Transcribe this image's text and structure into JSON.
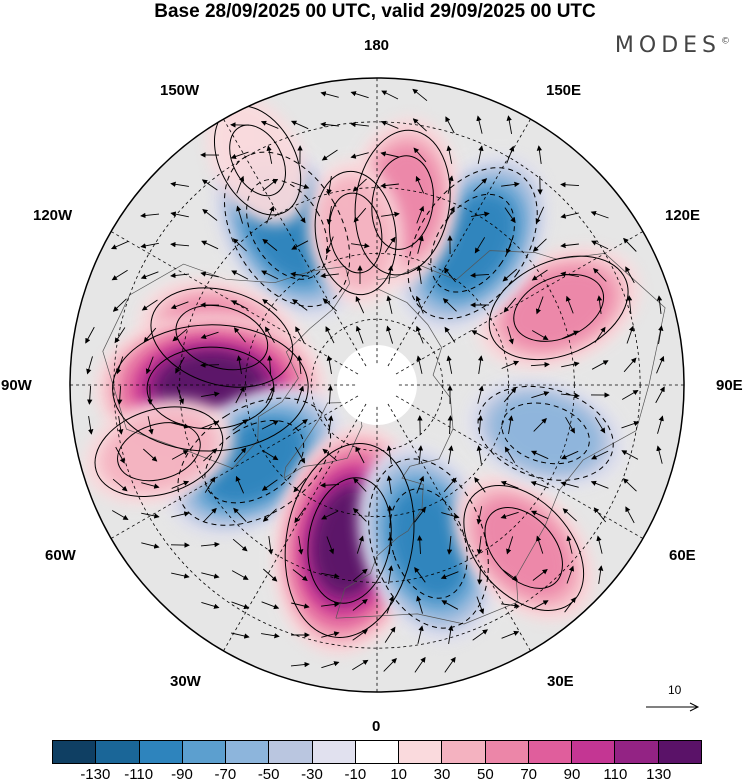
{
  "title": "Base 28/09/2025 00 UTC, valid 29/09/2025 00 UTC",
  "brand": "MODES",
  "brand_mark": "©",
  "longitude_labels": {
    "lon_180": "180",
    "lon_150e": "150E",
    "lon_120e": "120E",
    "lon_90e": "90E",
    "lon_60e": "60E",
    "lon_30e": "30E",
    "lon_0": "0",
    "lon_30w": "30W",
    "lon_60w": "60W",
    "lon_90w": "90W",
    "lon_120w": "120W",
    "lon_150w": "150W"
  },
  "reference_vector_label": "10",
  "colorbar": {
    "colors": [
      "#0f3f63",
      "#1a6698",
      "#2e84bd",
      "#5c9fcf",
      "#8db5dc",
      "#bac6e0",
      "#e1e1ef",
      "#ffffff",
      "#fadadd",
      "#f4b2c0",
      "#ec86a8",
      "#e05e9c",
      "#c43693",
      "#932384",
      "#5a1268"
    ],
    "tick_labels": [
      "-130",
      "-110",
      "-90",
      "-70",
      "-50",
      "-30",
      "-10",
      "10",
      "30",
      "50",
      "70",
      "90",
      "110",
      "130"
    ]
  },
  "anomaly_centers": [
    {
      "sign": "neg",
      "lon_deg": -150,
      "lat_deg": 49,
      "value": -90
    },
    {
      "sign": "pos",
      "lon_deg": -107,
      "lat_deg": 53,
      "value": 60
    },
    {
      "sign": "pos",
      "lon_deg": -89,
      "lat_deg": 52,
      "value": 130
    },
    {
      "sign": "neg",
      "lon_deg": -58,
      "lat_deg": 57,
      "value": -90
    },
    {
      "sign": "pos",
      "lon_deg": -73,
      "lat_deg": 38,
      "value": 40
    },
    {
      "sign": "pos",
      "lon_deg": -10,
      "lat_deg": 54,
      "value": 130
    },
    {
      "sign": "neg",
      "lon_deg": 18,
      "lat_deg": 52,
      "value": -100
    },
    {
      "sign": "pos",
      "lon_deg": 42,
      "lat_deg": 40,
      "value": 60
    },
    {
      "sign": "neg",
      "lon_deg": 74,
      "lat_deg": 50,
      "value": -50
    },
    {
      "sign": "pos",
      "lon_deg": 113,
      "lat_deg": 45,
      "value": 60
    },
    {
      "sign": "neg",
      "lon_deg": 146,
      "lat_deg": 51,
      "value": -90
    },
    {
      "sign": "pos",
      "lon_deg": 172,
      "lat_deg": 48,
      "value": 60
    },
    {
      "sign": "pos",
      "lon_deg": -172,
      "lat_deg": 55,
      "value": 30
    },
    {
      "sign": "pos",
      "lon_deg": -152,
      "lat_deg": 32,
      "value": 20
    }
  ]
}
